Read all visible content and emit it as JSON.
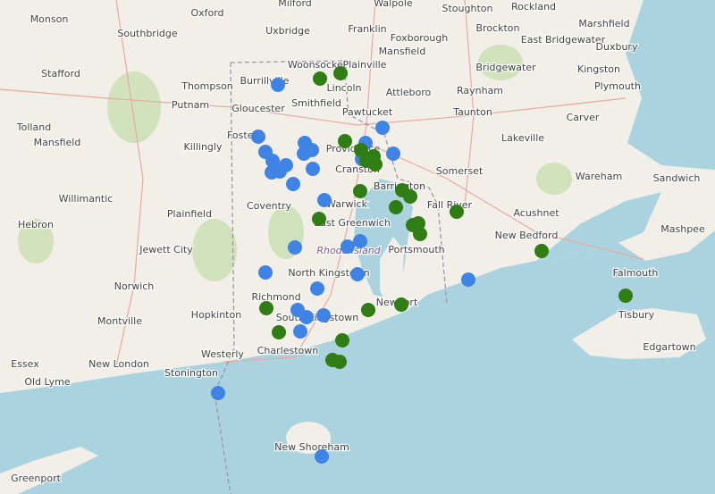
{
  "map": {
    "labels": [
      "Monson",
      "Oxford",
      "Southbridge",
      "Uxbridge",
      "Milford",
      "Franklin",
      "Walpole",
      "Stoughton",
      "Rockland",
      "Foxborough",
      "Brockton",
      "Marshfield",
      "Mansfield",
      "East Bridgewater",
      "Duxbury",
      "Woonsocket",
      "Plainville",
      "Bridgewater",
      "Kingston",
      "Stafford",
      "Thompson",
      "Burrillville",
      "Lincoln",
      "Attleboro",
      "Raynham",
      "Plymouth",
      "Putnam",
      "Gloucester",
      "Smithfield",
      "Pawtucket",
      "Taunton",
      "Carver",
      "Tolland",
      "Killingly",
      "Foster",
      "Providence",
      "Lakeville",
      "Mansfield",
      "Cranston",
      "Somerset",
      "Wareham",
      "Sandwich",
      "Willimantic",
      "Barrington",
      "Coventry",
      "Warwick",
      "Fall River",
      "Acushnet",
      "Hebron",
      "Plainfield",
      "East Greenwich",
      "New Bedford",
      "Mashpee",
      "Jewett City",
      "Rhode Island",
      "Portsmouth",
      "Falmouth",
      "Norwich",
      "North Kingstown",
      "Richmond",
      "Newport",
      "Hopkinton",
      "Montville",
      "South Kingstown",
      "Tisbury",
      "Charlestown",
      "Westerly",
      "Edgartown",
      "Essex",
      "New London",
      "Stonington",
      "Old Lyme",
      "New Shoreham",
      "Greenport"
    ]
  }
}
